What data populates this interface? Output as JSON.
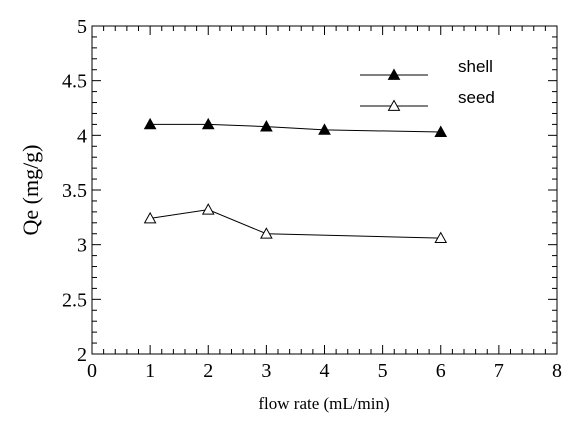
{
  "chart_data": {
    "type": "line",
    "xlabel": "flow rate (mL/min)",
    "ylabel": "Qe (mg/g)",
    "xlim": [
      0,
      8
    ],
    "ylim": [
      2,
      5
    ],
    "xticks": [
      0,
      1,
      2,
      3,
      4,
      5,
      6,
      7,
      8
    ],
    "yticks": [
      2,
      2.5,
      3,
      3.5,
      4,
      4.5,
      5
    ],
    "xtick_labels": [
      "0",
      "1",
      "2",
      "3",
      "4",
      "5",
      "6",
      "7",
      "8"
    ],
    "ytick_labels": [
      "2",
      "2.5",
      "3",
      "3.5",
      "4",
      "4.5",
      "5"
    ],
    "grid": false,
    "legend_position": "top-right",
    "series": [
      {
        "name": "shell",
        "marker": "filled-triangle",
        "x": [
          1,
          2,
          3,
          4,
          6
        ],
        "y": [
          4.1,
          4.1,
          4.08,
          4.05,
          4.03
        ]
      },
      {
        "name": "seed",
        "marker": "open-triangle",
        "x": [
          1,
          2,
          3,
          6
        ],
        "y": [
          3.24,
          3.32,
          3.1,
          3.06
        ]
      }
    ]
  }
}
